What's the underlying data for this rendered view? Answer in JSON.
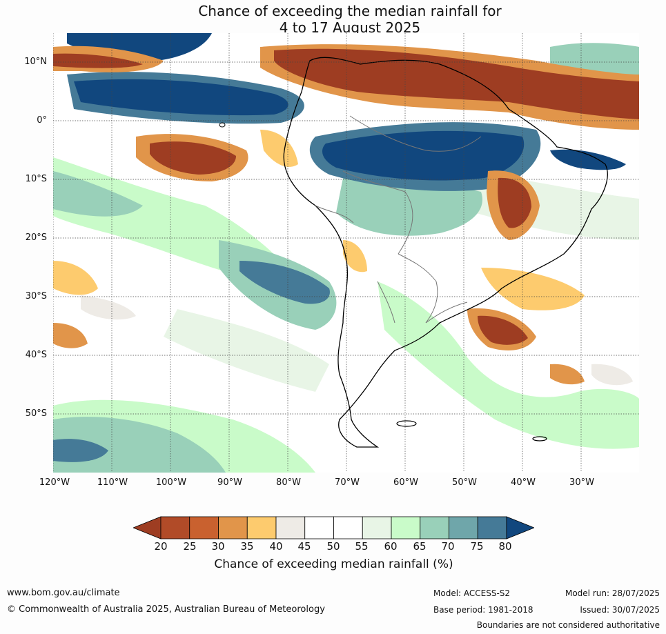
{
  "title_line1": "Chance of exceeding the median rainfall for",
  "title_line2": "4 to 17 August 2025",
  "lat_labels": [
    "10°N",
    "0°",
    "10°S",
    "20°S",
    "30°S",
    "40°S",
    "50°S"
  ],
  "lon_labels": [
    "120°W",
    "110°W",
    "100°W",
    "90°W",
    "80°W",
    "70°W",
    "60°W",
    "50°W",
    "40°W",
    "30°W"
  ],
  "legend": {
    "title": "Chance of exceeding median rainfall (%)",
    "ticks": [
      "20",
      "25",
      "30",
      "35",
      "40",
      "45",
      "50",
      "55",
      "60",
      "65",
      "70",
      "75",
      "80"
    ],
    "colors": [
      "#9e3d22",
      "#b14b28",
      "#c9612f",
      "#e1954a",
      "#fdcb6e",
      "#eeebe6",
      "#ffffff",
      "#ffffff",
      "#e8f5e6",
      "#c9fbc9",
      "#99d0b9",
      "#6fa6aa",
      "#457a97",
      "#11477e"
    ]
  },
  "footer": {
    "website": "www.bom.gov.au/climate",
    "copyright": "© Commonwealth of Australia 2025, Australian Bureau of Meteorology",
    "model": "Model: ACCESS-S2",
    "base_period": "Base period: 1981-2018",
    "model_run": "Model run: 28/07/2025",
    "issued": "Issued: 30/07/2025",
    "disclaimer": "Boundaries are not considered authoritative"
  }
}
